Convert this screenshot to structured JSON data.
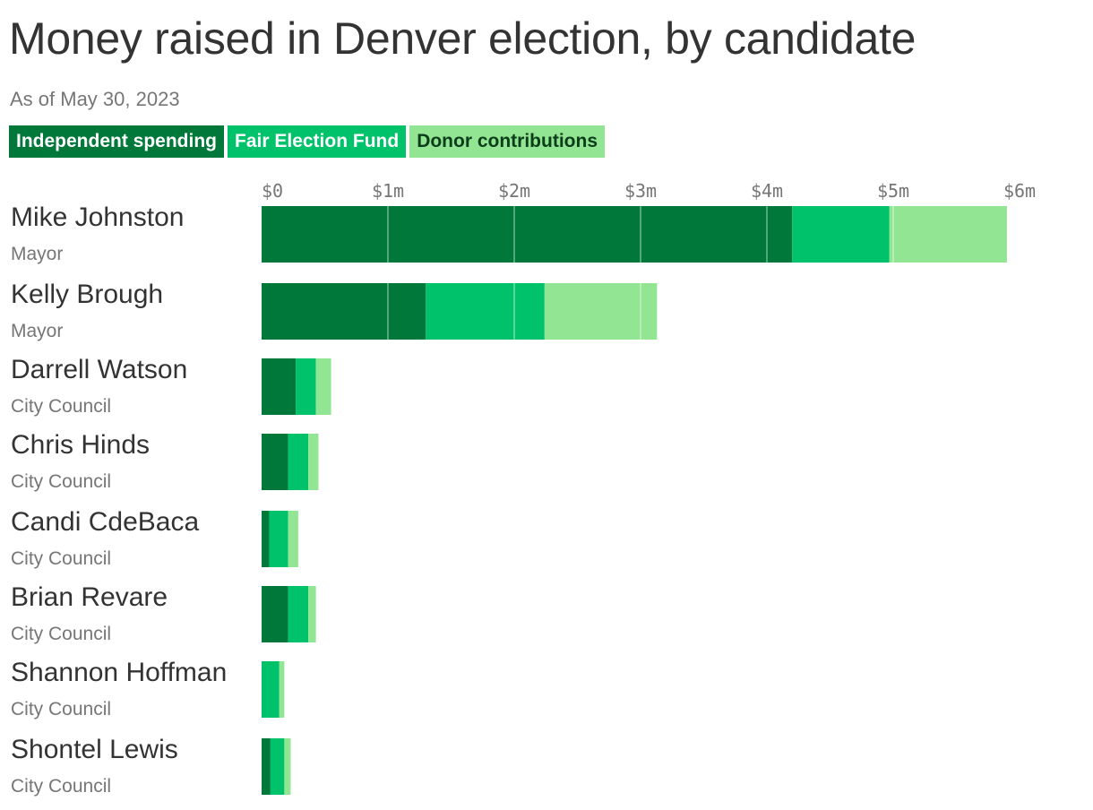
{
  "title": "Money raised in Denver election, by candidate",
  "subtitle": "As of May 30, 2023",
  "legend": [
    {
      "label": "Independent spending",
      "color": "#00783a",
      "text_color": "#ffffff"
    },
    {
      "label": "Fair Election Fund",
      "color": "#00c26a",
      "text_color": "#ffffff"
    },
    {
      "label": "Donor contributions",
      "color": "#92e592",
      "text_color": "#0b3d1a"
    }
  ],
  "chart_data": {
    "type": "bar",
    "orientation": "horizontal",
    "stacked": true,
    "xlim": [
      0,
      6000000
    ],
    "x_ticks": [
      {
        "value": 0,
        "label": "$0"
      },
      {
        "value": 1000000,
        "label": "$1m"
      },
      {
        "value": 2000000,
        "label": "$2m"
      },
      {
        "value": 3000000,
        "label": "$3m"
      },
      {
        "value": 4000000,
        "label": "$4m"
      },
      {
        "value": 5000000,
        "label": "$5m"
      },
      {
        "value": 6000000,
        "label": "$6m"
      }
    ],
    "grid": true,
    "categories": [
      {
        "name": "Mike Johnston",
        "role": "Mayor"
      },
      {
        "name": "Kelly Brough",
        "role": "Mayor"
      },
      {
        "name": "Darrell Watson",
        "role": "City Council"
      },
      {
        "name": "Chris Hinds",
        "role": "City Council"
      },
      {
        "name": "Candi CdeBaca",
        "role": "City Council"
      },
      {
        "name": "Brian Revare",
        "role": "City Council"
      },
      {
        "name": "Shannon Hoffman",
        "role": "City Council"
      },
      {
        "name": "Shontel Lewis",
        "role": "City Council"
      }
    ],
    "series": [
      {
        "name": "Independent spending",
        "color": "#00783a",
        "values": [
          4200000,
          1300000,
          270000,
          210000,
          60000,
          210000,
          0,
          70000
        ]
      },
      {
        "name": "Fair Election Fund",
        "color": "#00c26a",
        "values": [
          770000,
          940000,
          160000,
          160000,
          150000,
          160000,
          140000,
          110000
        ]
      },
      {
        "name": "Donor contributions",
        "color": "#92e592",
        "values": [
          930000,
          890000,
          120000,
          80000,
          80000,
          60000,
          40000,
          50000
        ]
      }
    ]
  }
}
